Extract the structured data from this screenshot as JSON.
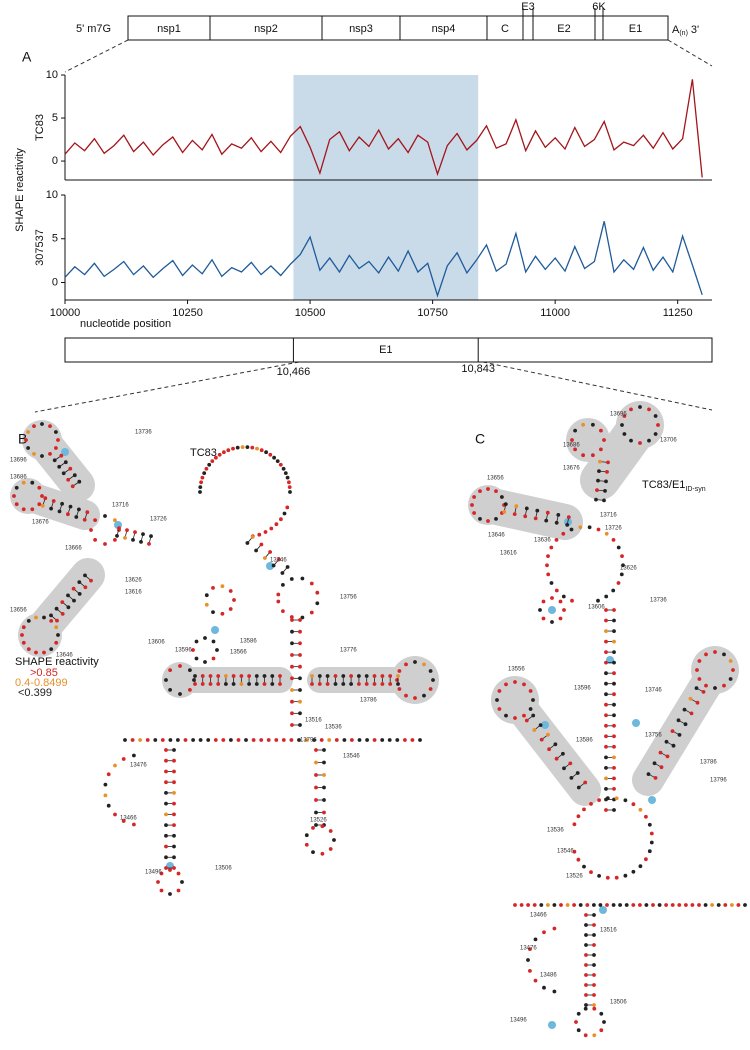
{
  "genome": {
    "five_prime": "5' m7G",
    "genes": [
      "nsp1",
      "nsp2",
      "nsp3",
      "nsp4",
      "C",
      "E3",
      "E2",
      "6K",
      "E1"
    ],
    "tail_base": "A",
    "tail_sub": "(n)",
    "three_prime": "3'"
  },
  "panel_a": {
    "label": "A",
    "y_label": "SHAPE reactivity"
  },
  "region": {
    "gene": "E1",
    "start": {
      "value": 10466,
      "label": "10,466"
    },
    "end": {
      "value": 10843,
      "label": "10,843"
    }
  },
  "chart_data": [
    {
      "type": "line",
      "y_label": "TC83",
      "color": "#a3151b",
      "xlim": [
        10000,
        11320
      ],
      "ylim": [
        -2.2,
        10
      ],
      "yticks": [
        0,
        5,
        10
      ],
      "x": [
        10000,
        10020,
        10040,
        10060,
        10080,
        10100,
        10120,
        10140,
        10160,
        10180,
        10200,
        10220,
        10240,
        10260,
        10280,
        10300,
        10320,
        10340,
        10360,
        10380,
        10400,
        10420,
        10440,
        10460,
        10480,
        10500,
        10520,
        10540,
        10560,
        10580,
        10600,
        10620,
        10640,
        10660,
        10680,
        10700,
        10720,
        10740,
        10760,
        10780,
        10800,
        10820,
        10840,
        10860,
        10880,
        10900,
        10920,
        10940,
        10960,
        10980,
        11000,
        11020,
        11040,
        11060,
        11080,
        11100,
        11120,
        11140,
        11160,
        11180,
        11200,
        11220,
        11240,
        11260,
        11280,
        11300
      ],
      "values": [
        0.8,
        2.1,
        1.2,
        2.6,
        0.9,
        1.8,
        3.0,
        1.1,
        2.2,
        0.7,
        1.9,
        2.8,
        1.0,
        2.4,
        1.3,
        3.1,
        0.8,
        2.0,
        1.5,
        2.7,
        1.1,
        2.3,
        1.0,
        2.9,
        4.0,
        1.6,
        -1.4,
        2.5,
        3.4,
        1.2,
        2.8,
        1.7,
        3.6,
        1.4,
        2.6,
        1.0,
        3.0,
        2.2,
        -1.5,
        1.8,
        3.2,
        1.3,
        2.4,
        4.1,
        1.5,
        2.0,
        4.8,
        1.2,
        3.5,
        1.6,
        2.7,
        1.4,
        3.9,
        1.7,
        2.5,
        4.6,
        1.3,
        2.2,
        1.8,
        3.0,
        1.5,
        3.3,
        1.4,
        2.6,
        9.5,
        -1.9
      ]
    },
    {
      "type": "line",
      "y_label": "307537",
      "color": "#1f5a9a",
      "xlim": [
        10000,
        11320
      ],
      "ylim": [
        -2,
        10
      ],
      "yticks": [
        0,
        5,
        10
      ],
      "xticks": [
        10000,
        10250,
        10500,
        10750,
        11000,
        11250
      ],
      "x_label": "nucleotide position",
      "x": [
        10000,
        10020,
        10040,
        10060,
        10080,
        10100,
        10120,
        10140,
        10160,
        10180,
        10200,
        10220,
        10240,
        10260,
        10280,
        10300,
        10320,
        10340,
        10360,
        10380,
        10400,
        10420,
        10440,
        10460,
        10480,
        10500,
        10520,
        10540,
        10560,
        10580,
        10600,
        10620,
        10640,
        10660,
        10680,
        10700,
        10720,
        10740,
        10760,
        10780,
        10800,
        10820,
        10840,
        10860,
        10880,
        10900,
        10920,
        10940,
        10960,
        10980,
        11000,
        11020,
        11040,
        11060,
        11080,
        11100,
        11120,
        11140,
        11160,
        11180,
        11200,
        11220,
        11240,
        11260,
        11280,
        11300
      ],
      "values": [
        0.6,
        1.8,
        0.9,
        2.2,
        0.7,
        1.5,
        2.4,
        0.9,
        1.9,
        0.6,
        1.6,
        2.5,
        0.8,
        2.0,
        1.0,
        2.6,
        0.7,
        1.7,
        1.2,
        2.3,
        0.9,
        1.9,
        0.8,
        2.1,
        3.2,
        5.2,
        1.4,
        2.8,
        1.2,
        3.1,
        1.6,
        2.4,
        1.1,
        2.9,
        1.3,
        3.6,
        1.2,
        2.2,
        -1.5,
        1.9,
        3.4,
        1.1,
        2.6,
        4.3,
        1.3,
        2.1,
        5.6,
        1.2,
        3.0,
        1.5,
        2.8,
        1.3,
        4.1,
        1.6,
        2.4,
        7.0,
        1.2,
        2.6,
        1.5,
        4.0,
        1.4,
        2.9,
        1.2,
        5.3,
        2.0,
        -1.4
      ]
    }
  ],
  "panel_b": {
    "label": "B",
    "title": "TC83",
    "legend": {
      "title": "SHAPE reactivity",
      "items": [
        ">0.85",
        "0.4-0.8499",
        "<0.399"
      ],
      "colors": [
        "#d62728",
        "#e8902a",
        "#222222"
      ]
    },
    "positions": [
      "13696",
      "13736",
      "13686",
      "13716",
      "13676",
      "13666",
      "13656",
      "13646",
      "13726",
      "13746",
      "13756",
      "13626",
      "13616",
      "13606",
      "13596",
      "13586",
      "13566",
      "13776",
      "13786",
      "13796",
      "13546",
      "13536",
      "13516",
      "13506",
      "13496",
      "13476",
      "13466",
      "13526"
    ]
  },
  "panel_c": {
    "label": "C",
    "title": "TC83/E1",
    "title_sub": "ID-syn",
    "positions": [
      "13696",
      "13686",
      "13706",
      "13676",
      "13656",
      "13646",
      "13636",
      "13716",
      "13726",
      "13616",
      "13626",
      "13606",
      "13736",
      "13596",
      "13746",
      "13586",
      "13756",
      "13786",
      "13796",
      "13556",
      "13536",
      "13546",
      "13526",
      "13516",
      "13506",
      "13466",
      "13476",
      "13496",
      "13486"
    ]
  }
}
